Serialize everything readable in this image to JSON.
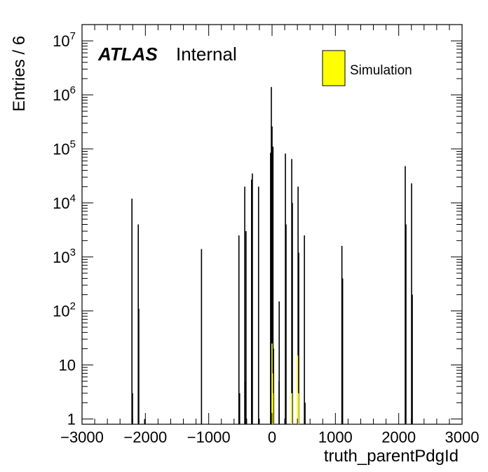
{
  "chart_data": {
    "type": "histogram",
    "ylog": true,
    "xlabel": "truth_parentPdgId",
    "ylabel": "Entries / 6",
    "xlim": [
      -3000,
      3000
    ],
    "ylim": [
      0.8,
      20000000
    ],
    "atlas_label": "ATLAS",
    "status_label": "Internal",
    "legend_placement": "top-right",
    "x_ticks": [
      -3000,
      -2000,
      -1000,
      0,
      1000,
      2000,
      3000
    ],
    "x_tick_labels": [
      "−3000",
      "−2000",
      "−1000",
      "0",
      "1000",
      "2000",
      "3000"
    ],
    "y_ticks": [
      {
        "value": 1,
        "base": "1",
        "exp": ""
      },
      {
        "value": 10,
        "base": "10",
        "exp": ""
      },
      {
        "value": 100,
        "base": "10",
        "exp": "2"
      },
      {
        "value": 1000,
        "base": "10",
        "exp": "3"
      },
      {
        "value": 10000,
        "base": "10",
        "exp": "4"
      },
      {
        "value": 100000,
        "base": "10",
        "exp": "5"
      },
      {
        "value": 1000000,
        "base": "10",
        "exp": "6"
      },
      {
        "value": 10000000,
        "base": "10",
        "exp": "7"
      }
    ],
    "series": [
      {
        "name": "",
        "color": "#000000",
        "bins": [
          {
            "x": -2212,
            "y": 12000
          },
          {
            "x": -2203,
            "y": 3
          },
          {
            "x": -2112,
            "y": 4000
          },
          {
            "x": -2104,
            "y": 110
          },
          {
            "x": -2011,
            "y": 1
          },
          {
            "x": -1114,
            "y": 1400
          },
          {
            "x": -523,
            "y": 2500
          },
          {
            "x": -512,
            "y": 3
          },
          {
            "x": -431,
            "y": 20000
          },
          {
            "x": -421,
            "y": 5
          },
          {
            "x": -411,
            "y": 3000
          },
          {
            "x": -323,
            "y": 27000
          },
          {
            "x": -311,
            "y": 35000
          },
          {
            "x": -213,
            "y": 20000
          },
          {
            "x": -23,
            "y": 85000
          },
          {
            "x": -11,
            "y": 1400000
          },
          {
            "x": 0,
            "y": 260000
          },
          {
            "x": 11,
            "y": 10
          },
          {
            "x": 15,
            "y": 110000
          },
          {
            "x": 24,
            "y": 20
          },
          {
            "x": 111,
            "y": 5
          },
          {
            "x": 113,
            "y": 150
          },
          {
            "x": 211,
            "y": 82000
          },
          {
            "x": 221,
            "y": 4000
          },
          {
            "x": 311,
            "y": 65000
          },
          {
            "x": 321,
            "y": 10000
          },
          {
            "x": 411,
            "y": 20000
          },
          {
            "x": 421,
            "y": 1200
          },
          {
            "x": 511,
            "y": 2500
          },
          {
            "x": 521,
            "y": 2
          },
          {
            "x": 1103,
            "y": 1600
          },
          {
            "x": 1114,
            "y": 400
          },
          {
            "x": 2103,
            "y": 48000
          },
          {
            "x": 2114,
            "y": 4000
          },
          {
            "x": 2203,
            "y": 23000
          },
          {
            "x": 2214,
            "y": 200
          }
        ]
      },
      {
        "name": "Simulation",
        "color": "#ffff00",
        "bins": [
          {
            "x": -1,
            "y": 25
          },
          {
            "x": 7,
            "y": 7
          },
          {
            "x": 14,
            "y": 3
          },
          {
            "x": 311,
            "y": 3
          },
          {
            "x": 403,
            "y": 15
          },
          {
            "x": 416,
            "y": 3
          }
        ]
      }
    ]
  }
}
